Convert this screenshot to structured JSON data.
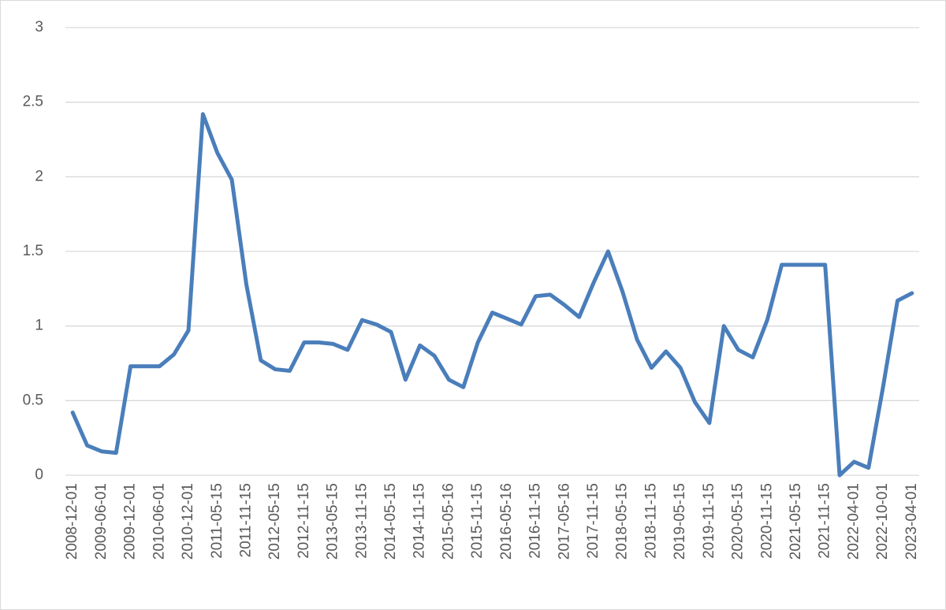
{
  "chart_data": {
    "type": "line",
    "categories": [
      "2008-12-01",
      null,
      "2009-06-01",
      null,
      "2009-12-01",
      null,
      "2010-06-01",
      null,
      "2010-12-01",
      null,
      "2011-05-15",
      null,
      "2011-11-15",
      null,
      "2012-05-15",
      null,
      "2012-11-15",
      null,
      "2013-05-15",
      null,
      "2013-11-15",
      null,
      "2014-05-15",
      null,
      "2014-11-15",
      null,
      "2015-05-16",
      null,
      "2015-11-15",
      null,
      "2016-05-16",
      null,
      "2016-11-15",
      null,
      "2017-05-16",
      null,
      "2017-11-15",
      null,
      "2018-05-15",
      null,
      "2018-11-15",
      null,
      "2019-05-15",
      null,
      "2019-11-15",
      null,
      "2020-05-15",
      null,
      "2020-11-15",
      null,
      "2021-05-15",
      null,
      "2021-11-15",
      null,
      "2022-04-01",
      null,
      "2022-10-01",
      null,
      "2023-04-01"
    ],
    "series": [
      {
        "color": "#4a7ebb",
        "values": [
          0.42,
          0.2,
          0.16,
          0.15,
          0.73,
          0.73,
          0.73,
          0.81,
          0.97,
          2.42,
          2.16,
          1.98,
          1.28,
          0.77,
          0.71,
          0.7,
          0.89,
          0.89,
          0.88,
          0.84,
          1.04,
          1.01,
          0.96,
          0.64,
          0.87,
          0.8,
          0.64,
          0.59,
          0.89,
          1.09,
          1.05,
          1.01,
          1.2,
          1.21,
          1.14,
          1.06,
          1.29,
          1.5,
          1.23,
          0.91,
          0.72,
          0.83,
          0.72,
          0.49,
          0.35,
          1.0,
          0.84,
          0.79,
          1.04,
          1.41,
          1.41,
          1.41,
          1.41,
          0.0,
          0.09,
          0.05,
          0.59,
          1.17,
          1.22
        ]
      }
    ],
    "ylim": [
      0,
      3
    ],
    "yticks": [
      0,
      0.5,
      1,
      1.5,
      2,
      2.5,
      3
    ],
    "grid": true
  }
}
